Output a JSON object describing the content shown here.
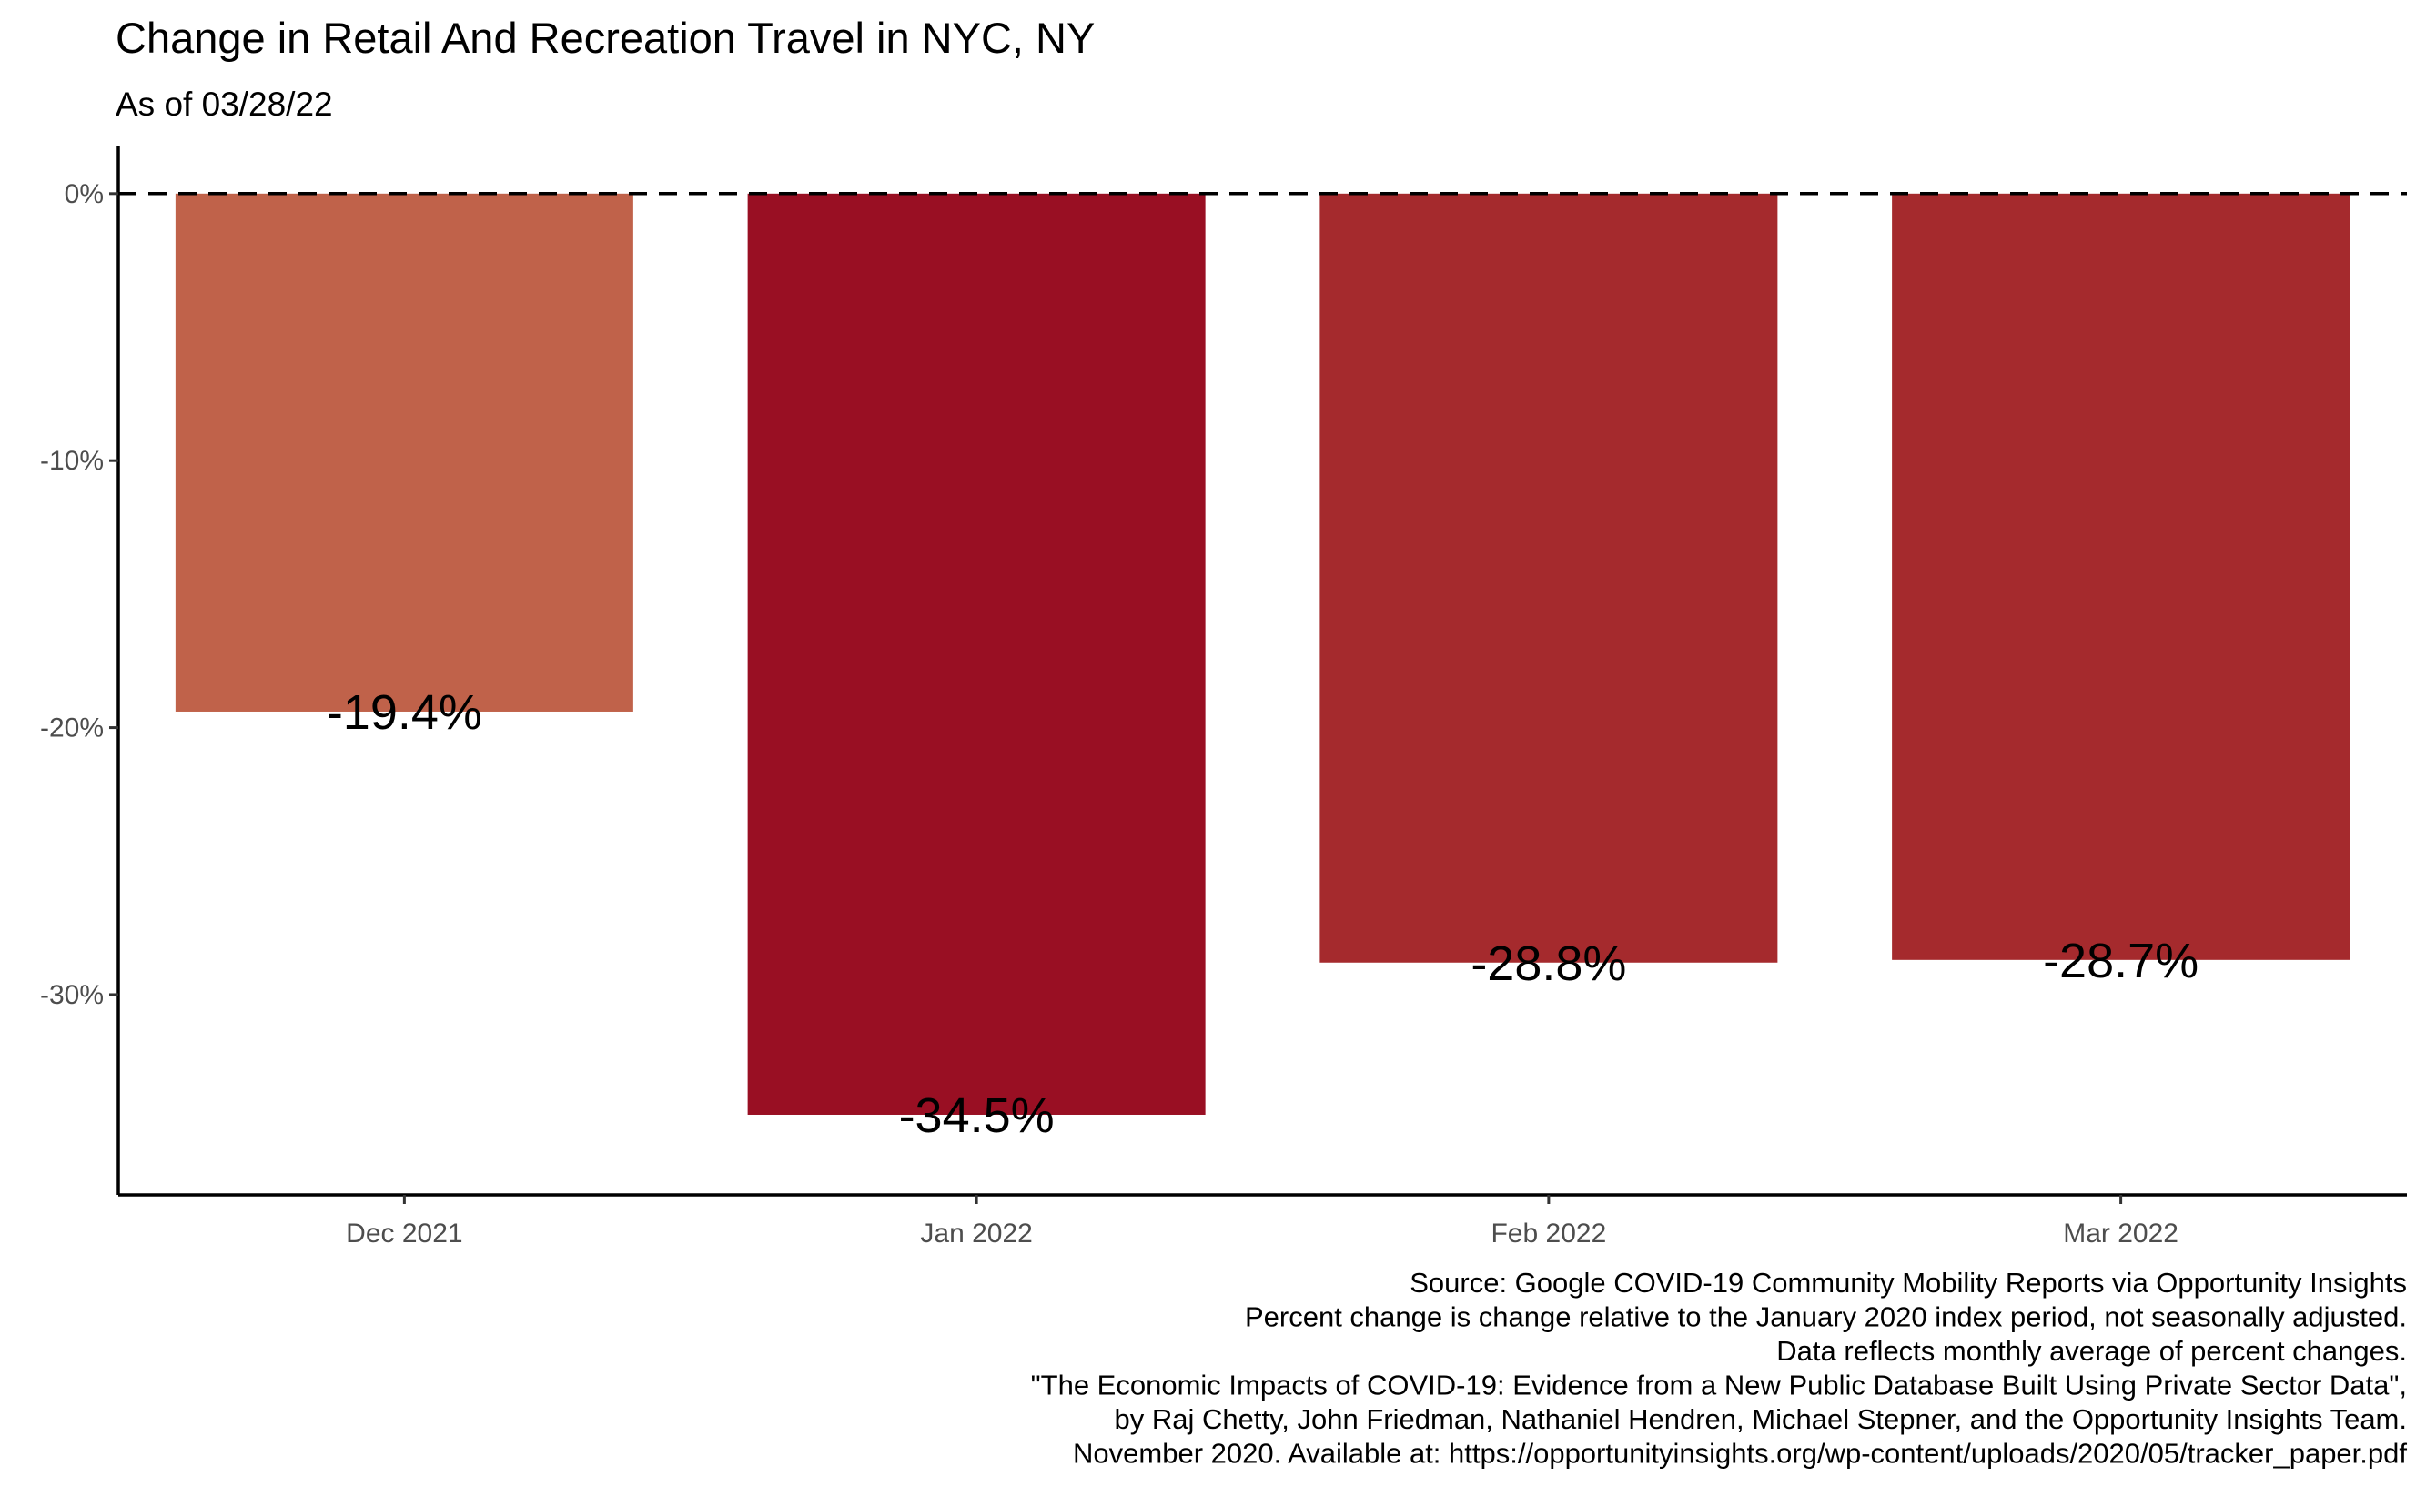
{
  "chart_data": {
    "type": "bar",
    "title": "Change in Retail And Recreation Travel in NYC, NY",
    "subtitle": "As of 03/28/22",
    "categories": [
      "Dec 2021",
      "Jan 2022",
      "Feb 2022",
      "Mar 2022"
    ],
    "values": [
      -19.4,
      -34.5,
      -28.8,
      -28.7
    ],
    "value_labels": [
      "-19.4%",
      "-34.5%",
      "-28.8%",
      "-28.7%"
    ],
    "bar_colors": [
      "#C0624A",
      "#990F23",
      "#A52A2D",
      "#A52A2D"
    ],
    "y_ticks": [
      0,
      -10,
      -20,
      -30
    ],
    "y_tick_labels": [
      "0%",
      "-10%",
      "-20%",
      "-30%"
    ],
    "ylim": [
      -37.5,
      1.8
    ],
    "reference_line": 0,
    "reference_line_style": "dashed",
    "xlabel": "",
    "ylabel": "",
    "grid": false,
    "caption": [
      "Source: Google COVID-19 Community Mobility Reports via Opportunity Insights",
      "Percent change is change relative to the January 2020 index period, not seasonally adjusted.",
      "Data reflects monthly average of percent changes.",
      "\"The Economic Impacts of COVID-19: Evidence from a New Public Database Built Using Private Sector Data\",",
      "by Raj Chetty, John Friedman, Nathaniel Hendren, Michael Stepner, and the Opportunity Insights Team.",
      "November 2020. Available at: https://opportunityinsights.org/wp-content/uploads/2020/05/tracker_paper.pdf"
    ]
  }
}
